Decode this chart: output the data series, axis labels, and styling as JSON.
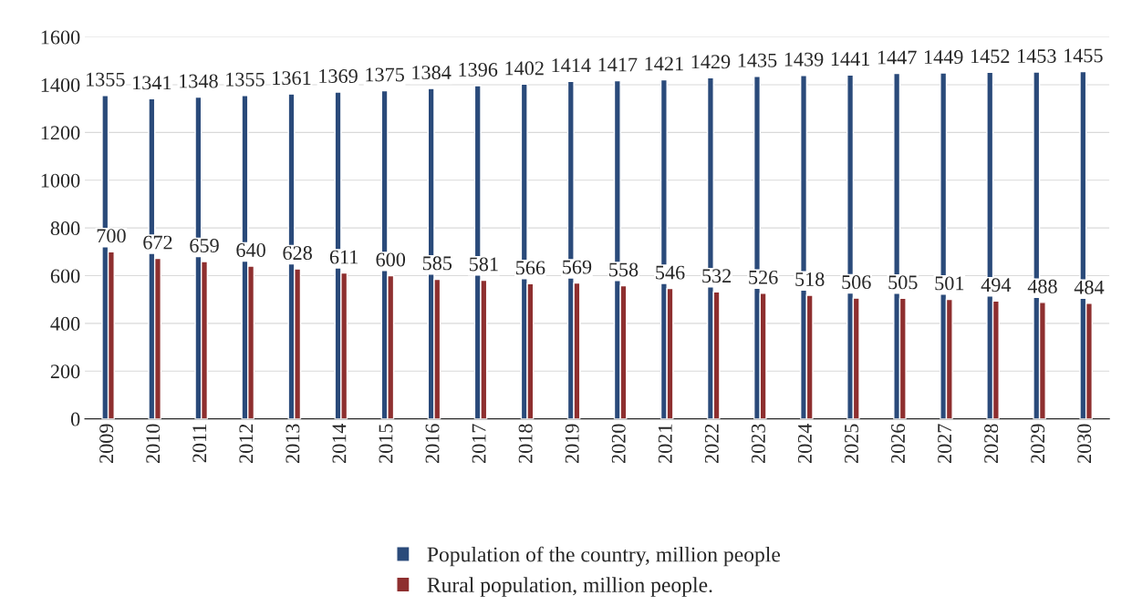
{
  "chart_data": {
    "type": "bar",
    "categories": [
      "2009",
      "2010",
      "2011",
      "2012",
      "2013",
      "2014",
      "2015",
      "2016",
      "2017",
      "2018",
      "2019",
      "2020",
      "2021",
      "2022",
      "2023",
      "2024",
      "2025",
      "2026",
      "2027",
      "2028",
      "2029",
      "2030"
    ],
    "series": [
      {
        "name": "Population of the country, million people",
        "color": "#2a4a7a",
        "values": [
          1355,
          1341,
          1348,
          1355,
          1361,
          1369,
          1375,
          1384,
          1396,
          1402,
          1414,
          1417,
          1421,
          1429,
          1435,
          1439,
          1441,
          1447,
          1449,
          1452,
          1453,
          1455
        ]
      },
      {
        "name": "Rural population, million people.",
        "color": "#8e2f2f",
        "values": [
          700,
          672,
          659,
          640,
          628,
          611,
          600,
          585,
          581,
          566,
          569,
          558,
          546,
          532,
          526,
          518,
          506,
          505,
          501,
          494,
          488,
          484
        ]
      }
    ],
    "ylim": [
      0,
      1600
    ],
    "yticks": [
      0,
      200,
      400,
      600,
      800,
      1000,
      1200,
      1400,
      1600
    ],
    "grid": "y",
    "legend": "bottom",
    "data_labels": true
  }
}
